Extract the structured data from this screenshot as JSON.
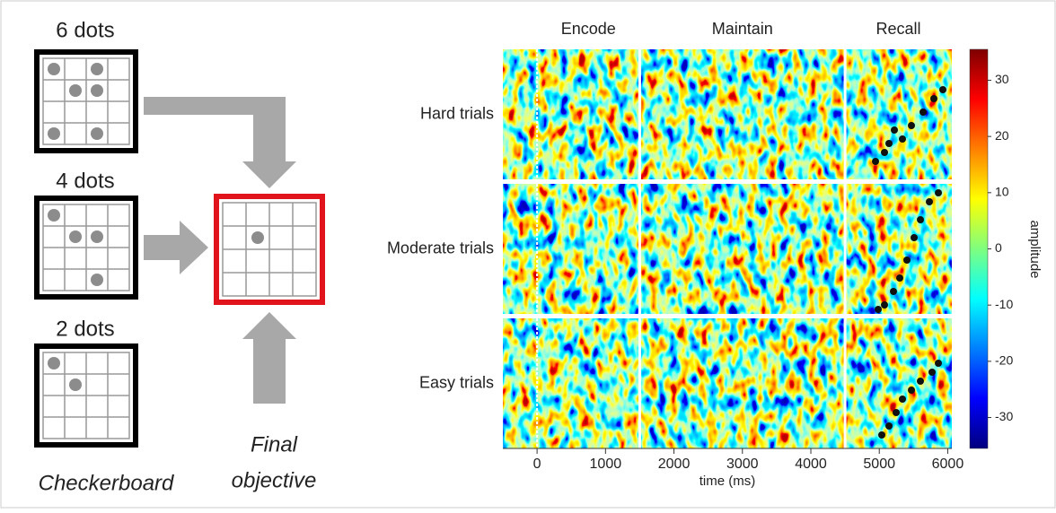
{
  "diagram": {
    "boards": [
      "6 dots",
      "4 dots",
      "2 dots"
    ],
    "checkerboard": "Checkerboard",
    "final": [
      "Final",
      "objective"
    ]
  },
  "chart_data": {
    "type": "heatmap",
    "panels": [
      "Hard trials",
      "Moderate trials",
      "Easy trials"
    ],
    "phases": [
      "Encode",
      "Maintain",
      "Recall"
    ],
    "phase_boundaries": [
      0,
      1500,
      4500
    ],
    "x_label": "time (ms)",
    "xlim": [
      -500,
      6060
    ],
    "xticks": [
      0,
      1000,
      2000,
      3000,
      4000,
      5000,
      6000
    ],
    "colorbar": {
      "label": "amplitude",
      "lim": [
        -35.5,
        35.5
      ],
      "ticks": [
        30,
        20,
        10,
        0,
        -10,
        -20,
        -30
      ]
    }
  }
}
